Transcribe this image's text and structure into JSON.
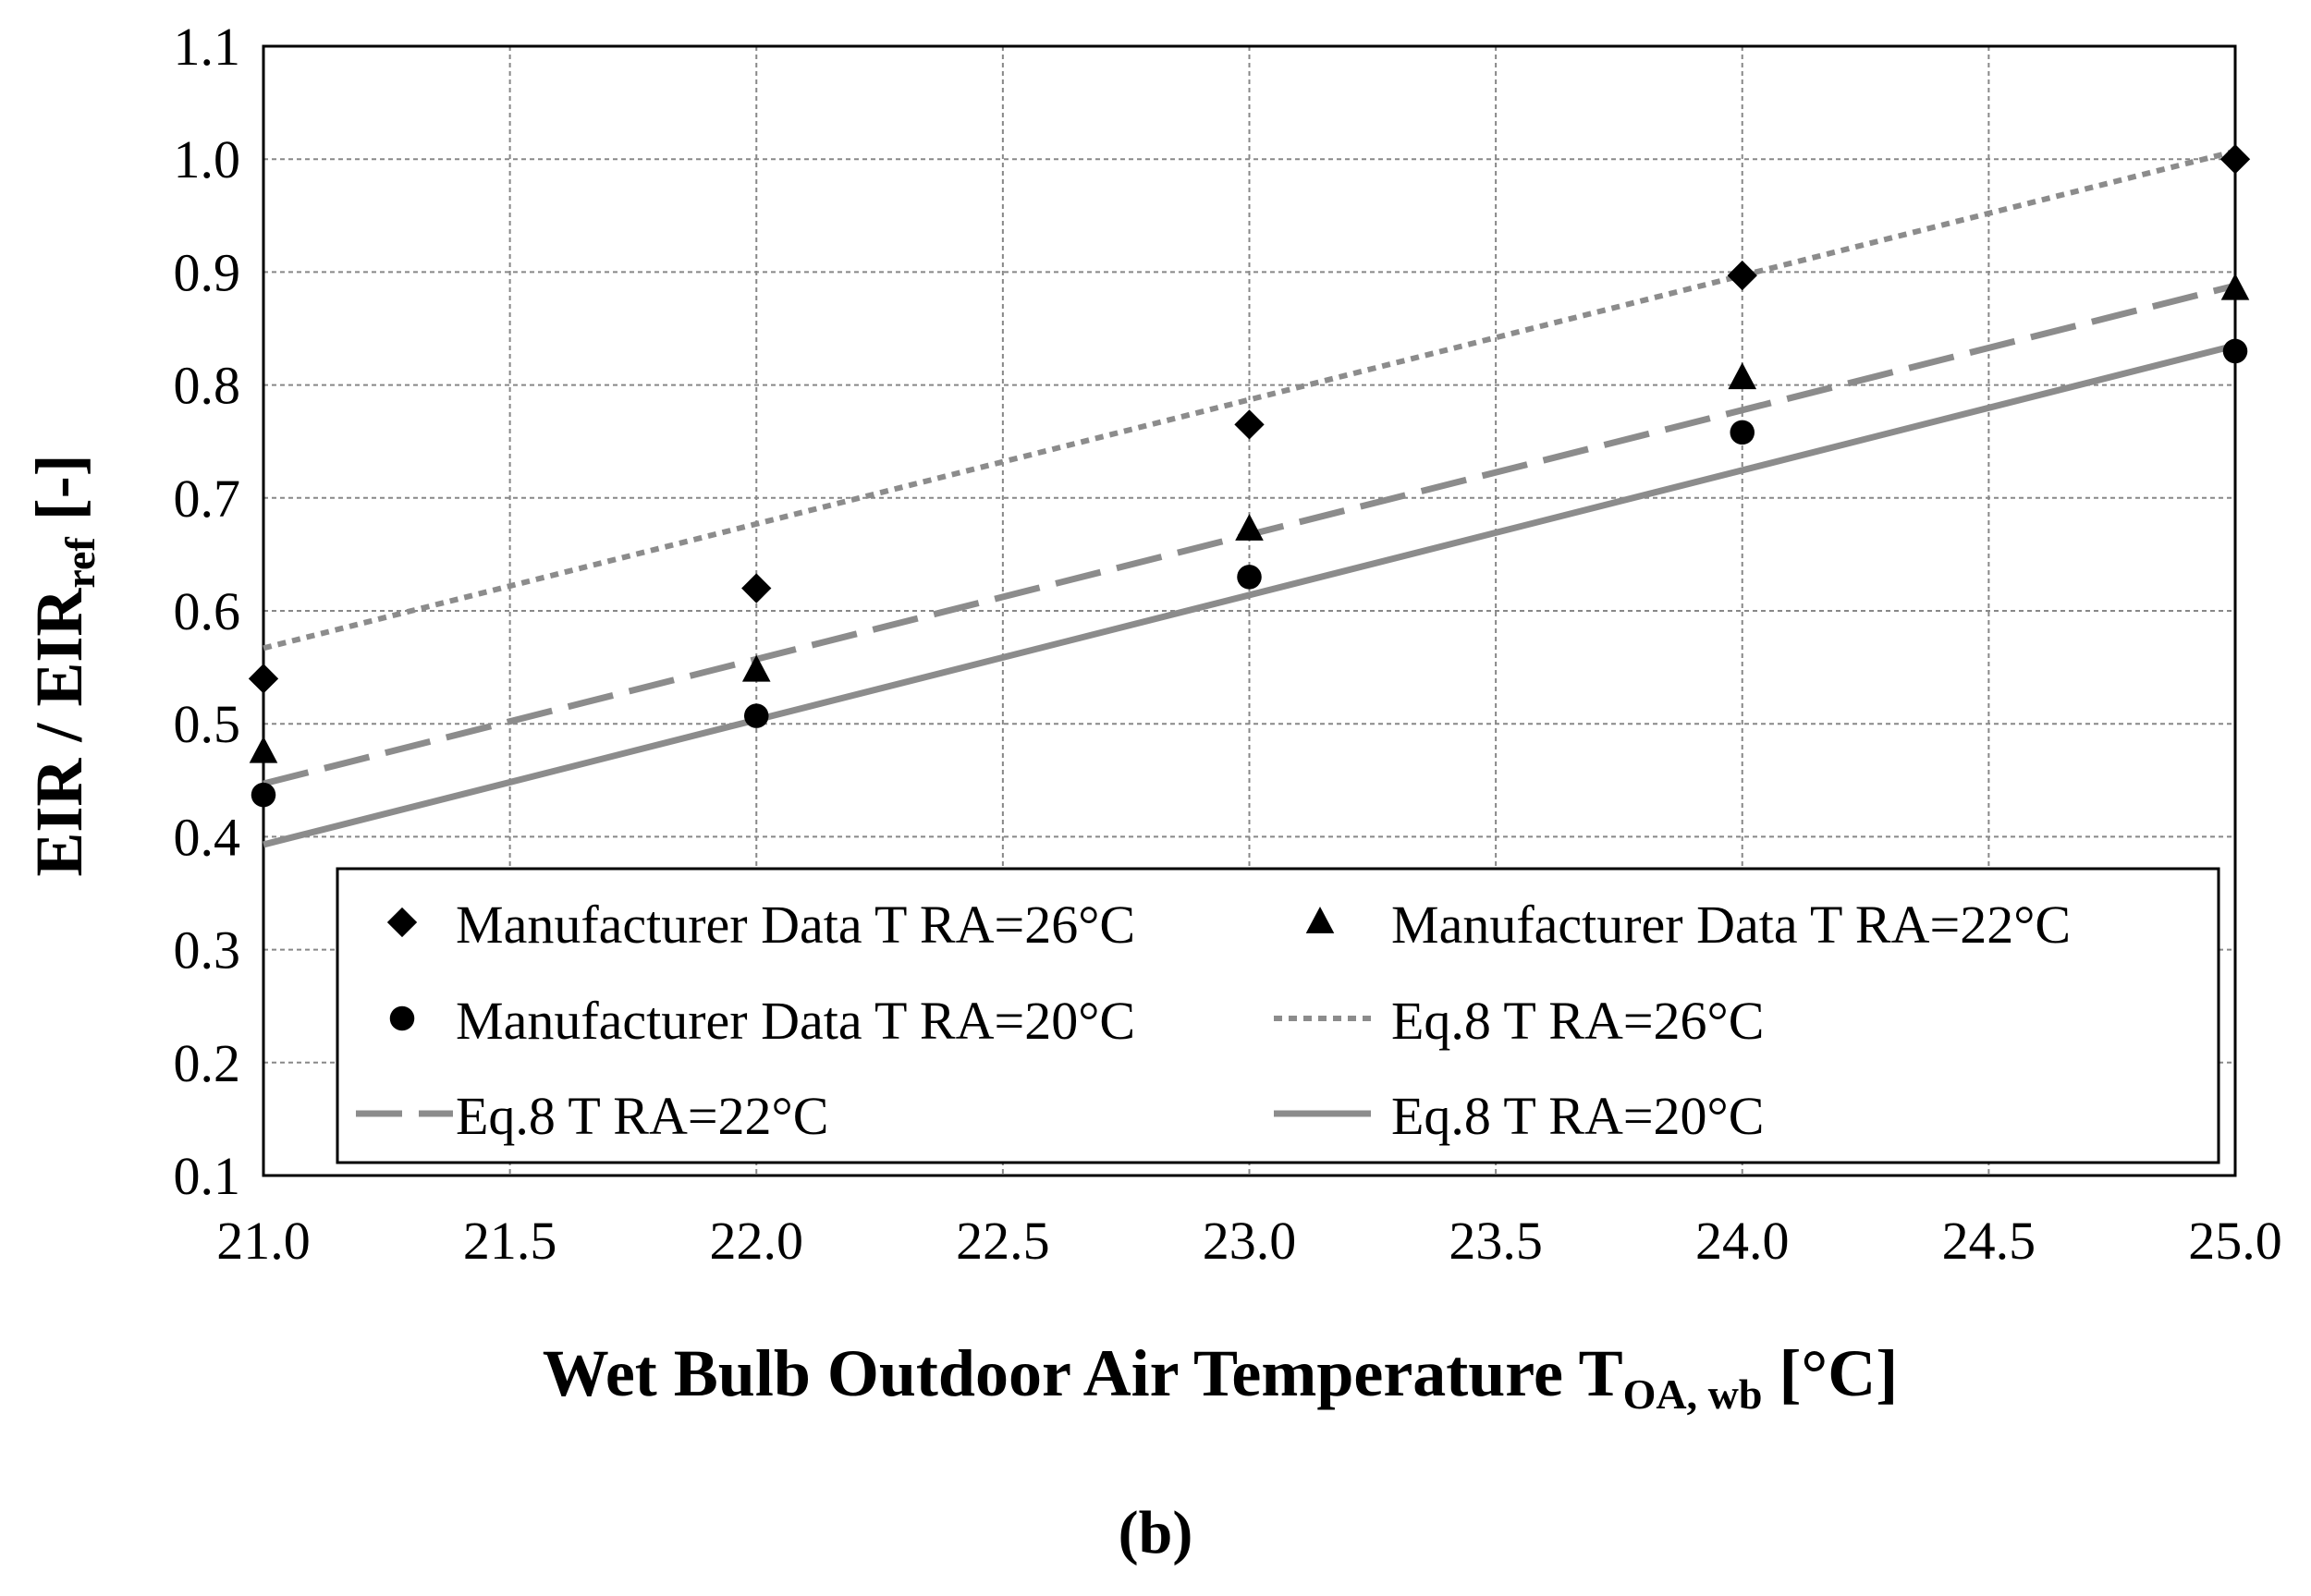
{
  "chart_data": {
    "type": "scatter",
    "xlabel_main": "Wet Bulb Outdoor Air Temperature T",
    "xlabel_sub": "OA, wb",
    "xlabel_unit": " [°C]",
    "ylabel_main": "EIR / EIR",
    "ylabel_sub": "ref",
    "ylabel_unit": " [-]",
    "xlim": [
      21.0,
      25.0
    ],
    "ylim": [
      0.1,
      1.1
    ],
    "x_ticks": [
      21.0,
      21.5,
      22.0,
      22.5,
      23.0,
      23.5,
      24.0,
      24.5,
      25.0
    ],
    "x_tick_labels": [
      "21.0",
      "21.5",
      "22.0",
      "22.5",
      "23.0",
      "23.5",
      "24.0",
      "24.5",
      "25.0"
    ],
    "y_ticks": [
      0.1,
      0.2,
      0.3,
      0.4,
      0.5,
      0.6,
      0.7,
      0.8,
      0.9,
      1.0,
      1.1
    ],
    "y_tick_labels": [
      "0.1",
      "0.2",
      "0.3",
      "0.4",
      "0.5",
      "0.6",
      "0.7",
      "0.8",
      "0.9",
      "1.0",
      "1.1"
    ],
    "grid": true,
    "legend_position": "bottom",
    "caption": "(b)",
    "series": [
      {
        "name": "Manufacturer Data T RA=26°C",
        "kind": "markers",
        "marker": "diamond",
        "color": "#000000",
        "x": [
          21,
          22,
          23,
          24,
          25
        ],
        "y": [
          0.54,
          0.62,
          0.765,
          0.897,
          1.0
        ]
      },
      {
        "name": "Manufacturer Data T RA=22°C",
        "kind": "markers",
        "marker": "triangle",
        "color": "#000000",
        "x": [
          21,
          22,
          23,
          24,
          25
        ],
        "y": [
          0.475,
          0.547,
          0.672,
          0.806,
          0.885
        ]
      },
      {
        "name": "Manufacturer Data T RA=20°C",
        "kind": "markers",
        "marker": "circle",
        "color": "#000000",
        "x": [
          21,
          22,
          23,
          24,
          25
        ],
        "y": [
          0.437,
          0.507,
          0.63,
          0.758,
          0.83
        ]
      },
      {
        "name": "Eq.8 T RA=26°C",
        "kind": "line",
        "dash": "dotted",
        "color": "#8c8c8c",
        "x": [
          21,
          25
        ],
        "y": [
          0.567,
          1.007
        ]
      },
      {
        "name": "Eq.8 T RA=22°C",
        "kind": "line",
        "dash": "dashed",
        "color": "#8c8c8c",
        "x": [
          21,
          25
        ],
        "y": [
          0.447,
          0.888
        ]
      },
      {
        "name": "Eq.8 T RA=20°C",
        "kind": "line",
        "dash": "solid",
        "color": "#8c8c8c",
        "x": [
          21,
          25
        ],
        "y": [
          0.393,
          0.835
        ]
      }
    ]
  }
}
